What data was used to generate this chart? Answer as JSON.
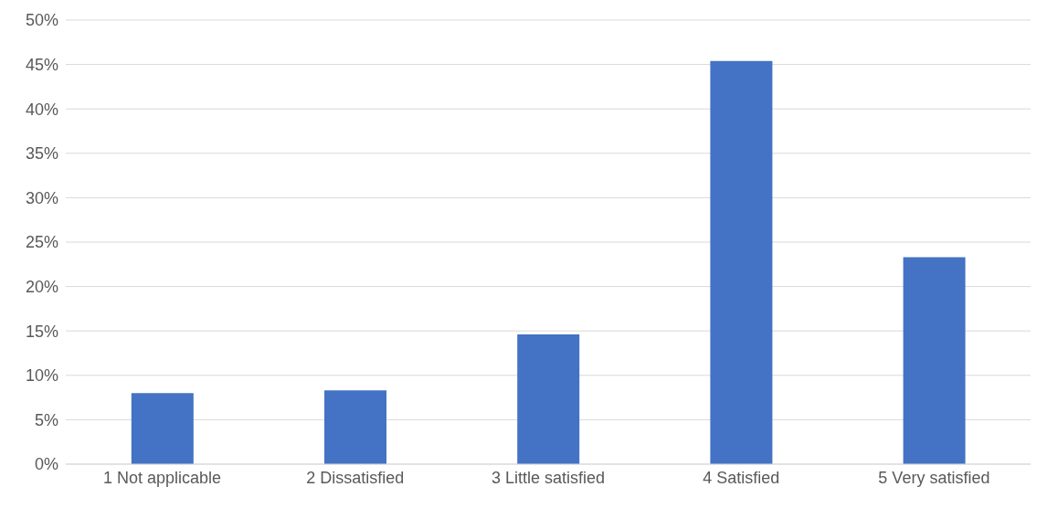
{
  "chart_data": {
    "type": "bar",
    "categories": [
      "1 Not applicable",
      "2 Dissatisfied",
      "3 Little satisfied",
      "4 Satisfied",
      "5 Very satisfied"
    ],
    "values": [
      8.0,
      8.3,
      14.6,
      45.4,
      23.3
    ],
    "color": "#4472c4",
    "ylim": [
      0,
      50
    ],
    "yticks": [
      {
        "value": 0,
        "label": "0%"
      },
      {
        "value": 5,
        "label": "5%"
      },
      {
        "value": 10,
        "label": "10%"
      },
      {
        "value": 15,
        "label": "15%"
      },
      {
        "value": 20,
        "label": "20%"
      },
      {
        "value": 25,
        "label": "25%"
      },
      {
        "value": 30,
        "label": "30%"
      },
      {
        "value": 35,
        "label": "35%"
      },
      {
        "value": 40,
        "label": "40%"
      },
      {
        "value": 45,
        "label": "45%"
      },
      {
        "value": 50,
        "label": "50%"
      }
    ],
    "grid": "y",
    "legend": false
  }
}
